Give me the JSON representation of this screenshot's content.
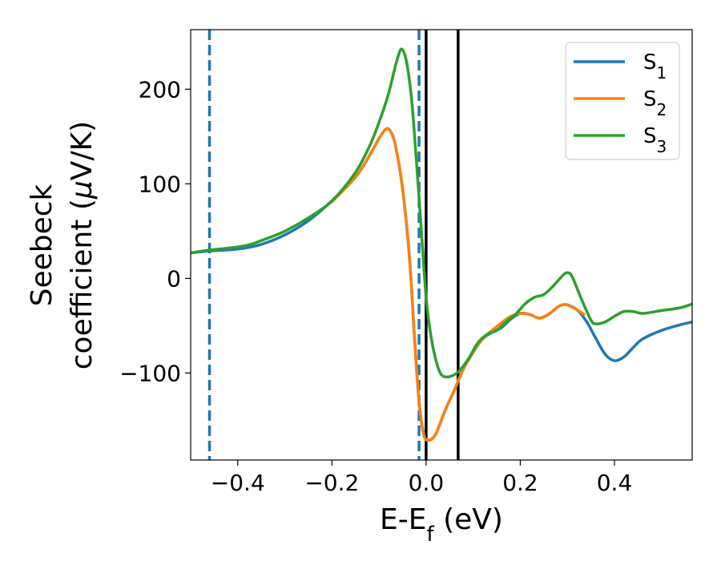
{
  "chart_data": {
    "type": "line",
    "xlabel": "E-E",
    "xlabel_sub": "f",
    "xlabel_unit": " (eV)",
    "ylabel_line1": "Seebeck",
    "ylabel_line2": "coefficient  (",
    "ylabel_mu": "μ",
    "ylabel_unit": "V/K)",
    "xlim": [
      -0.5,
      0.565
    ],
    "ylim": [
      -192,
      263
    ],
    "x_ticks": [
      -0.4,
      -0.2,
      0.0,
      0.2,
      0.4
    ],
    "x_tick_labels": [
      "−0.4",
      "−0.2",
      "0.0",
      "0.2",
      "0.4"
    ],
    "y_ticks": [
      -100,
      0,
      100,
      200
    ],
    "y_tick_labels": [
      "−100",
      "0",
      "100",
      "200"
    ],
    "legend_position": "top-right",
    "grid": false,
    "vertical_lines": [
      {
        "x": -0.46,
        "style": "dashed",
        "color": "#1f77b4"
      },
      {
        "x": -0.015,
        "style": "dashed",
        "color": "#1f77b4"
      },
      {
        "x": 0.0,
        "style": "solid",
        "color": "#000000"
      },
      {
        "x": 0.068,
        "style": "solid",
        "color": "#000000"
      }
    ],
    "series": [
      {
        "name": "S",
        "subscript": "1",
        "color": "#1f77b4",
        "points": [
          [
            -0.5,
            27
          ],
          [
            -0.46,
            29
          ],
          [
            -0.4,
            31
          ],
          [
            -0.35,
            36
          ],
          [
            -0.3,
            46
          ],
          [
            -0.25,
            61
          ],
          [
            -0.2,
            82
          ],
          [
            -0.15,
            107
          ],
          [
            -0.12,
            130
          ],
          [
            -0.1,
            148
          ],
          [
            -0.085,
            158
          ],
          [
            -0.075,
            155
          ],
          [
            -0.065,
            140
          ],
          [
            -0.05,
            95
          ],
          [
            -0.035,
            20
          ],
          [
            -0.025,
            -60
          ],
          [
            -0.015,
            -130
          ],
          [
            -0.005,
            -165
          ],
          [
            0.005,
            -171
          ],
          [
            0.02,
            -165
          ],
          [
            0.04,
            -140
          ],
          [
            0.06,
            -118
          ],
          [
            0.08,
            -95
          ],
          [
            0.1,
            -78
          ],
          [
            0.12,
            -64
          ],
          [
            0.14,
            -57
          ],
          [
            0.16,
            -52
          ],
          [
            0.18,
            -43
          ],
          [
            0.2,
            -37
          ],
          [
            0.22,
            -38
          ],
          [
            0.24,
            -42
          ],
          [
            0.26,
            -38
          ],
          [
            0.28,
            -30
          ],
          [
            0.29,
            -28
          ],
          [
            0.3,
            -28
          ],
          [
            0.32,
            -33
          ],
          [
            0.34,
            -45
          ],
          [
            0.36,
            -63
          ],
          [
            0.38,
            -80
          ],
          [
            0.4,
            -87
          ],
          [
            0.42,
            -83
          ],
          [
            0.44,
            -73
          ],
          [
            0.46,
            -64
          ],
          [
            0.5,
            -55
          ],
          [
            0.54,
            -49
          ],
          [
            0.565,
            -46
          ]
        ]
      },
      {
        "name": "S",
        "subscript": "2",
        "color": "#ff7f0e",
        "points": [
          [
            -0.2,
            81
          ],
          [
            -0.15,
            107
          ],
          [
            -0.12,
            130
          ],
          [
            -0.1,
            148
          ],
          [
            -0.085,
            158
          ],
          [
            -0.075,
            155
          ],
          [
            -0.065,
            140
          ],
          [
            -0.05,
            95
          ],
          [
            -0.035,
            20
          ],
          [
            -0.025,
            -60
          ],
          [
            -0.015,
            -130
          ],
          [
            -0.005,
            -165
          ],
          [
            0.005,
            -171
          ],
          [
            0.02,
            -165
          ],
          [
            0.04,
            -140
          ],
          [
            0.06,
            -118
          ],
          [
            0.08,
            -95
          ],
          [
            0.1,
            -78
          ],
          [
            0.12,
            -64
          ],
          [
            0.14,
            -55
          ],
          [
            0.16,
            -47
          ],
          [
            0.18,
            -40
          ],
          [
            0.2,
            -37
          ],
          [
            0.22,
            -38
          ],
          [
            0.24,
            -42
          ],
          [
            0.26,
            -38
          ],
          [
            0.28,
            -30
          ],
          [
            0.29,
            -28
          ],
          [
            0.3,
            -28
          ],
          [
            0.32,
            -33
          ],
          [
            0.335,
            -38
          ]
        ]
      },
      {
        "name": "S",
        "subscript": "3",
        "color": "#2ca02c",
        "points": [
          [
            -0.5,
            27
          ],
          [
            -0.46,
            30
          ],
          [
            -0.42,
            32
          ],
          [
            -0.38,
            35
          ],
          [
            -0.35,
            40
          ],
          [
            -0.3,
            50
          ],
          [
            -0.25,
            64
          ],
          [
            -0.2,
            82
          ],
          [
            -0.15,
            112
          ],
          [
            -0.12,
            140
          ],
          [
            -0.1,
            165
          ],
          [
            -0.08,
            195
          ],
          [
            -0.065,
            225
          ],
          [
            -0.055,
            241
          ],
          [
            -0.048,
            240
          ],
          [
            -0.04,
            225
          ],
          [
            -0.03,
            185
          ],
          [
            -0.02,
            120
          ],
          [
            -0.01,
            50
          ],
          [
            0.0,
            -20
          ],
          [
            0.01,
            -60
          ],
          [
            0.02,
            -85
          ],
          [
            0.03,
            -100
          ],
          [
            0.04,
            -104
          ],
          [
            0.055,
            -103
          ],
          [
            0.07,
            -98
          ],
          [
            0.09,
            -85
          ],
          [
            0.11,
            -68
          ],
          [
            0.13,
            -59
          ],
          [
            0.15,
            -55
          ],
          [
            0.17,
            -46
          ],
          [
            0.19,
            -38
          ],
          [
            0.21,
            -27
          ],
          [
            0.23,
            -20
          ],
          [
            0.25,
            -17
          ],
          [
            0.27,
            -8
          ],
          [
            0.29,
            3
          ],
          [
            0.3,
            6
          ],
          [
            0.31,
            2
          ],
          [
            0.33,
            -22
          ],
          [
            0.35,
            -44
          ],
          [
            0.36,
            -48
          ],
          [
            0.38,
            -46
          ],
          [
            0.4,
            -40
          ],
          [
            0.42,
            -35
          ],
          [
            0.44,
            -35
          ],
          [
            0.46,
            -37
          ],
          [
            0.5,
            -34
          ],
          [
            0.54,
            -31
          ],
          [
            0.565,
            -27
          ]
        ]
      }
    ]
  }
}
